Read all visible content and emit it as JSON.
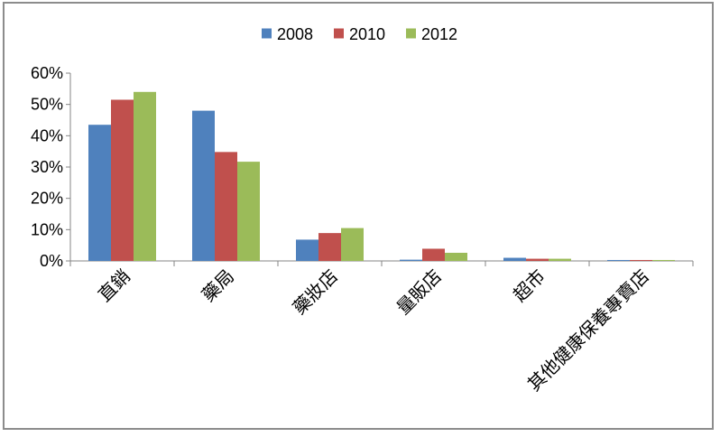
{
  "chart_data": {
    "type": "bar",
    "categories": [
      "直銷",
      "藥局",
      "藥妝店",
      "量販店",
      "超市",
      "其他健康保養專賣店"
    ],
    "series": [
      {
        "name": "2008",
        "color": "#4F81BD",
        "values": [
          43.5,
          48.0,
          6.8,
          0.4,
          1.0,
          0.3
        ]
      },
      {
        "name": "2010",
        "color": "#C0504D",
        "values": [
          51.5,
          34.8,
          8.9,
          3.9,
          0.7,
          0.3
        ]
      },
      {
        "name": "2012",
        "color": "#9BBB59",
        "values": [
          54.0,
          31.7,
          10.5,
          2.6,
          0.7,
          0.3
        ]
      }
    ],
    "ylim": [
      0,
      60
    ],
    "yticks": [
      "0%",
      "10%",
      "20%",
      "30%",
      "40%",
      "50%",
      "60%"
    ],
    "legend_position": "top",
    "grid": false,
    "title": "",
    "xlabel": "",
    "ylabel": ""
  }
}
